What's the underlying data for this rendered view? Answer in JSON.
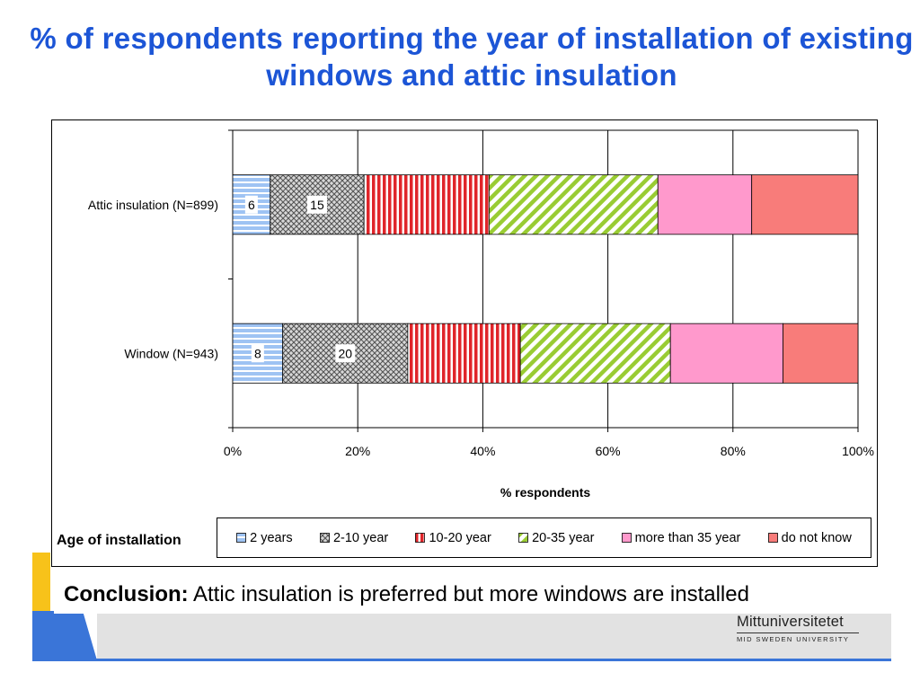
{
  "slide": {
    "title": "% of respondents reporting the year of installation of existing windows and attic insulation",
    "legend_caption": "Age of installation",
    "conclusion_label": "Conclusion:",
    "conclusion_text": " Attic insulation is preferred but more windows are installed",
    "logo_name": "Mittuniversitetet",
    "logo_subtitle": "MID SWEDEN UNIVERSITY",
    "colors": {
      "title": "#1c55d6",
      "deco_yellow": "#f7c21a",
      "deco_blue": "#3a75d8",
      "deco_gray": "#e2e2e2"
    }
  },
  "chart_data": {
    "type": "bar",
    "orientation": "horizontal",
    "stacked": "percent",
    "title": "",
    "xlabel": "% respondents",
    "ylabel": "",
    "xlim": [
      0,
      100
    ],
    "x_ticks": [
      "0%",
      "20%",
      "40%",
      "60%",
      "80%",
      "100%"
    ],
    "grid": true,
    "legend_position": "bottom",
    "categories": [
      "Attic insulation (N=899)",
      "Window (N=943)"
    ],
    "series": [
      {
        "name": "2 years",
        "values": [
          6,
          8
        ],
        "color": "#9ec3f3",
        "pattern": "hstripes"
      },
      {
        "name": "2-10 year",
        "values": [
          15,
          20
        ],
        "color": "#9a9a9a",
        "pattern": "crosshatch"
      },
      {
        "name": "10-20 year",
        "values": [
          20,
          18
        ],
        "color": "#e0252a",
        "pattern": "vstripes"
      },
      {
        "name": "20-35 year",
        "values": [
          27,
          24
        ],
        "color": "#99cc33",
        "pattern": "diagonal"
      },
      {
        "name": "more than 35 year",
        "values": [
          15,
          18
        ],
        "color": "#ff99cc",
        "pattern": "solid"
      },
      {
        "name": "do not know",
        "values": [
          17,
          12
        ],
        "color": "#f87c7a",
        "pattern": "solid"
      }
    ],
    "data_labels": [
      {
        "category": 0,
        "series": 0,
        "text": "6"
      },
      {
        "category": 0,
        "series": 1,
        "text": "15"
      },
      {
        "category": 1,
        "series": 0,
        "text": "8"
      },
      {
        "category": 1,
        "series": 1,
        "text": "20"
      }
    ]
  }
}
